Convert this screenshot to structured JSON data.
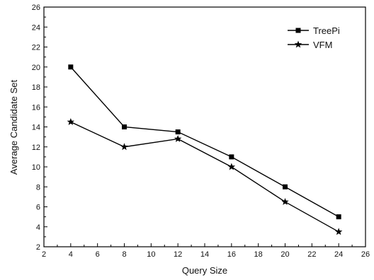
{
  "chart_data": {
    "type": "line",
    "title": "",
    "xlabel": "Query Size",
    "ylabel": "Average Candidate Set",
    "xlim": [
      2,
      26
    ],
    "ylim": [
      2,
      26
    ],
    "xticks": [
      2,
      4,
      6,
      8,
      10,
      12,
      14,
      16,
      18,
      20,
      22,
      24,
      26
    ],
    "yticks": [
      2,
      4,
      6,
      8,
      10,
      12,
      14,
      16,
      18,
      20,
      22,
      24,
      26
    ],
    "x": [
      4,
      8,
      12,
      16,
      20,
      24
    ],
    "grid": false,
    "legend_position": "top-right",
    "series": [
      {
        "name": "TreePi",
        "marker": "square",
        "color": "#000000",
        "values": [
          20,
          14,
          13.5,
          11,
          8,
          5
        ]
      },
      {
        "name": "VFM",
        "marker": "star",
        "color": "#000000",
        "values": [
          14.5,
          12,
          12.8,
          10,
          6.5,
          3.5
        ]
      }
    ]
  }
}
